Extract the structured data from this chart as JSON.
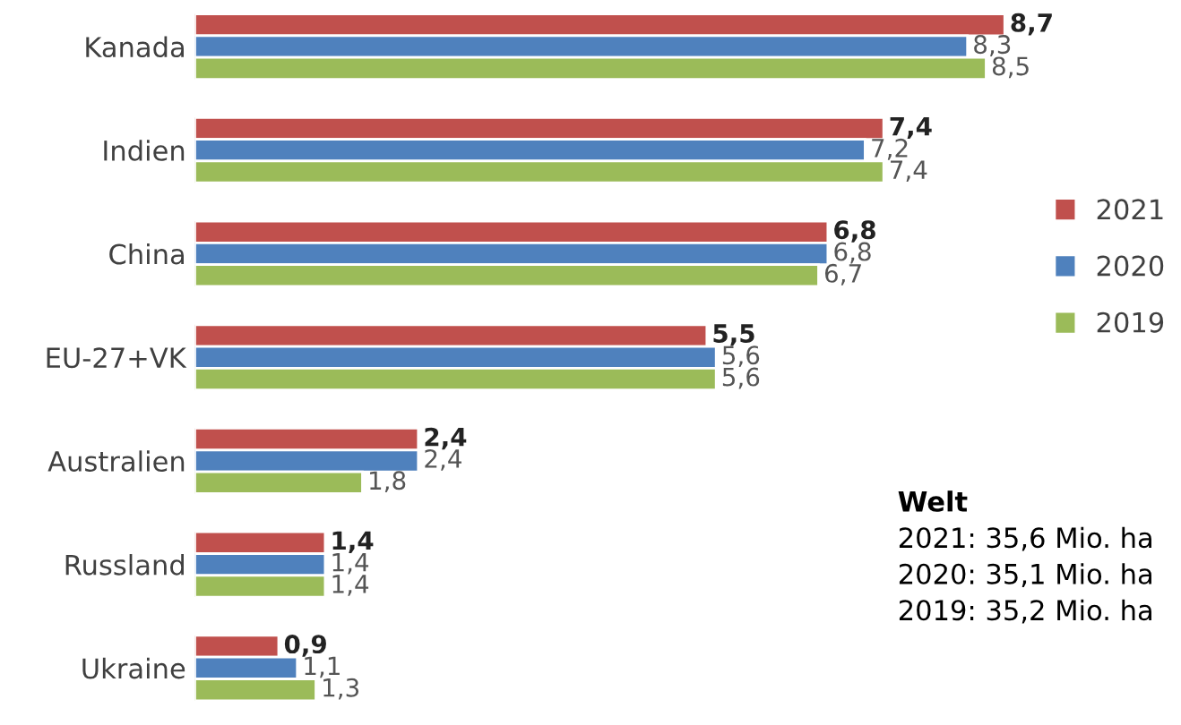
{
  "chart_data": {
    "type": "bar",
    "orientation": "horizontal",
    "categories": [
      "Kanada",
      "Indien",
      "China",
      "EU-27+VK",
      "Australien",
      "Russland",
      "Ukraine"
    ],
    "series": [
      {
        "name": "2021",
        "color": "#c0504d",
        "values": [
          8.7,
          7.4,
          6.8,
          5.5,
          2.4,
          1.4,
          0.9
        ],
        "value_labels": [
          "8,7",
          "7,4",
          "6,8",
          "5,5",
          "2,4",
          "1,4",
          "0,9"
        ]
      },
      {
        "name": "2020",
        "color": "#4f81bd",
        "values": [
          8.3,
          7.2,
          6.8,
          5.6,
          2.4,
          1.4,
          1.1
        ],
        "value_labels": [
          "8,3",
          "7,2",
          "6,8",
          "5,6",
          "2,4",
          "1,4",
          "1,1"
        ]
      },
      {
        "name": "2019",
        "color": "#9bbb59",
        "values": [
          8.5,
          7.4,
          6.7,
          5.6,
          1.8,
          1.4,
          1.3
        ],
        "value_labels": [
          "8,5",
          "7,4",
          "6,7",
          "5,6",
          "1,8",
          "1,4",
          "1,3"
        ]
      }
    ],
    "tick_labels": "y",
    "grid": false,
    "legend": "right",
    "annotations": [
      "Welt",
      "2021: 35,6 Mio. ha",
      "2020: 35,1 Mio. ha",
      "2019: 35,2 Mio. ha"
    ]
  }
}
